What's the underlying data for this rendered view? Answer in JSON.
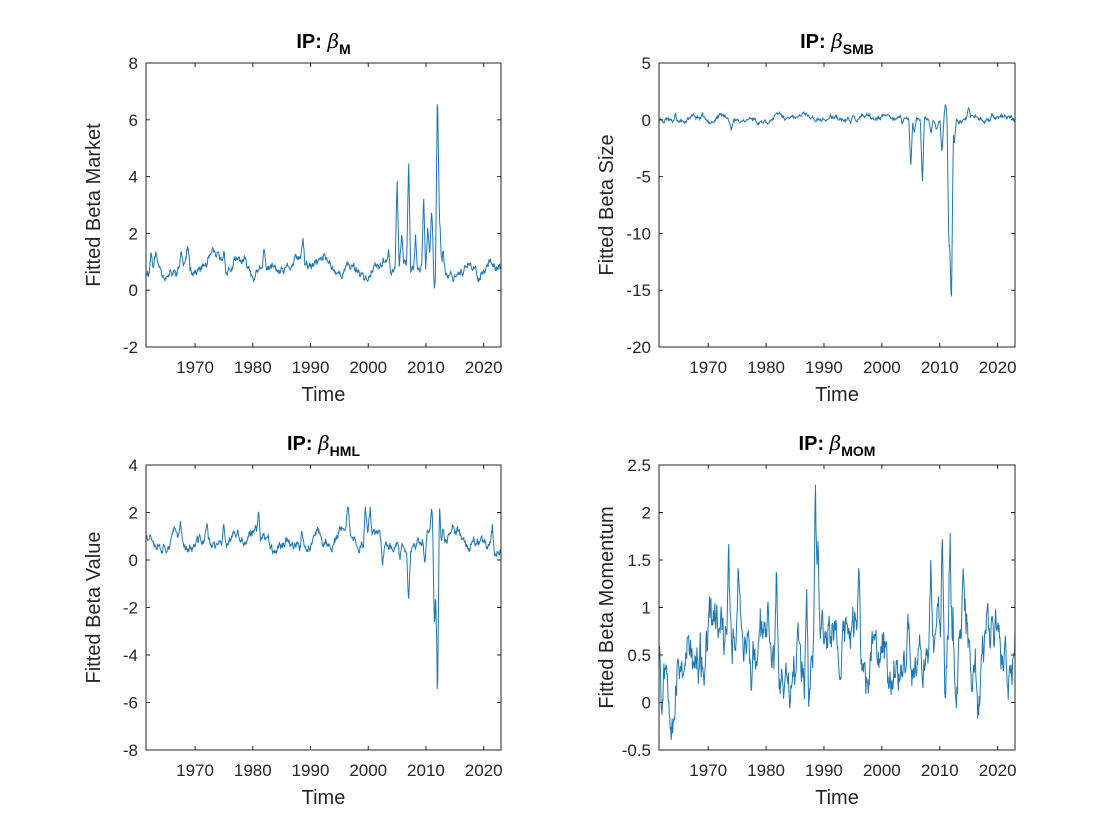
{
  "figure": {
    "line_color": "#1f77b4"
  },
  "chart_data": [
    {
      "type": "line",
      "title": "IP: β",
      "title_prefix": "IP: ",
      "title_symbol": "β",
      "title_subscript": "M",
      "xlabel": "Time",
      "ylabel": "Fitted Beta Market",
      "xlim": [
        1961.5,
        2023
      ],
      "ylim": [
        -2,
        8
      ],
      "xticks": [
        1970,
        1980,
        1990,
        2000,
        2010,
        2020
      ],
      "yticks": [
        -2,
        0,
        2,
        4,
        6,
        8
      ],
      "ytick_labels": [
        "-2",
        "0",
        "2",
        "4",
        "6",
        "8"
      ],
      "mean": 0.8,
      "amp": 0.28,
      "noise": 0.12,
      "lower_clip": -0.4,
      "seed": 11,
      "spikes": [
        [
          1962.4,
          0.7
        ],
        [
          1963.2,
          0.5
        ],
        [
          1967.6,
          0.6
        ],
        [
          1968.8,
          0.6
        ],
        [
          1975.0,
          0.5
        ],
        [
          1982.0,
          0.7
        ],
        [
          1988.7,
          0.9
        ],
        [
          2003.5,
          0.8
        ],
        [
          2005.0,
          3.2
        ],
        [
          2005.8,
          1.0
        ],
        [
          2007.0,
          3.8
        ],
        [
          2008.2,
          1.2
        ],
        [
          2009.6,
          2.7
        ],
        [
          2010.3,
          1.4
        ],
        [
          2011.0,
          1.8
        ],
        [
          2011.5,
          -1.1
        ],
        [
          2012.0,
          6.3
        ],
        [
          2012.4,
          1.6
        ],
        [
          2013.0,
          0.8
        ]
      ]
    },
    {
      "type": "line",
      "title": "IP: β",
      "title_prefix": "IP: ",
      "title_symbol": "β",
      "title_subscript": "SMB",
      "xlabel": "Time",
      "ylabel": "Fitted Beta Size",
      "xlim": [
        1961.5,
        2023
      ],
      "ylim": [
        -20,
        5
      ],
      "xticks": [
        1970,
        1980,
        1990,
        2000,
        2010,
        2020
      ],
      "yticks": [
        -20,
        -15,
        -10,
        -5,
        0,
        5
      ],
      "ytick_labels": [
        "-20",
        "-15",
        "-10",
        "-5",
        "0",
        "5"
      ],
      "mean": 0.1,
      "amp": 0.22,
      "noise": 0.14,
      "lower_clip": -20,
      "seed": 23,
      "spikes": [
        [
          1964.3,
          0.8
        ],
        [
          1969.0,
          0.5
        ],
        [
          1974.0,
          -0.6
        ],
        [
          1978.5,
          -0.5
        ],
        [
          1984.0,
          0.4
        ],
        [
          1995.0,
          0.3
        ],
        [
          2003.5,
          -0.6
        ],
        [
          2005.0,
          -4.4
        ],
        [
          2005.6,
          -1.5
        ],
        [
          2007.0,
          -6.0
        ],
        [
          2008.5,
          -1.2
        ],
        [
          2009.5,
          -0.8
        ],
        [
          2010.4,
          -3.0
        ],
        [
          2011.0,
          1.5
        ],
        [
          2011.6,
          -12.0
        ],
        [
          2012.0,
          -17.6
        ],
        [
          2012.5,
          -2.0
        ],
        [
          2015.0,
          0.5
        ],
        [
          2019.0,
          0.5
        ]
      ]
    },
    {
      "type": "line",
      "title": "IP: β",
      "title_prefix": "IP: ",
      "title_symbol": "β",
      "title_subscript": "HML",
      "xlabel": "Time",
      "ylabel": "Fitted Beta Value",
      "xlim": [
        1961.5,
        2023
      ],
      "ylim": [
        -8,
        4
      ],
      "xticks": [
        1970,
        1980,
        1990,
        2000,
        2010,
        2020
      ],
      "yticks": [
        -8,
        -6,
        -4,
        -2,
        0,
        2,
        4
      ],
      "ytick_labels": [
        "-8",
        "-6",
        "-4",
        "-2",
        "0",
        "2",
        "4"
      ],
      "mean": 0.8,
      "amp": 0.35,
      "noise": 0.16,
      "lower_clip": -8,
      "seed": 37,
      "spikes": [
        [
          1967.5,
          0.8
        ],
        [
          1972.0,
          0.7
        ],
        [
          1975.0,
          0.8
        ],
        [
          1981.0,
          1.0
        ],
        [
          1988.5,
          0.7
        ],
        [
          1996.5,
          0.9
        ],
        [
          1999.5,
          1.5
        ],
        [
          2000.3,
          1.3
        ],
        [
          2002.5,
          -0.8
        ],
        [
          2005.5,
          -0.9
        ],
        [
          2007.0,
          -2.0
        ],
        [
          2009.8,
          -1.3
        ],
        [
          2011.0,
          1.2
        ],
        [
          2011.5,
          -3.9
        ],
        [
          2012.0,
          -7.2
        ],
        [
          2012.3,
          1.8
        ],
        [
          2013.0,
          0.6
        ],
        [
          2021.5,
          0.9
        ]
      ]
    },
    {
      "type": "line",
      "title": "IP: β",
      "title_prefix": "IP: ",
      "title_symbol": "β",
      "title_subscript": "MOM",
      "xlabel": "Time",
      "ylabel": "Fitted Beta Momentum",
      "xlim": [
        1961.5,
        2023
      ],
      "ylim": [
        -0.5,
        2.5
      ],
      "xticks": [
        1970,
        1980,
        1990,
        2000,
        2010,
        2020
      ],
      "yticks": [
        -0.5,
        0,
        0.5,
        1,
        1.5,
        2,
        2.5
      ],
      "ytick_labels": [
        "-0.5",
        "0",
        "0.5",
        "1",
        "1.5",
        "2",
        "2.5"
      ],
      "mean": 0.55,
      "amp": 0.3,
      "noise": 0.18,
      "lower_clip": -0.45,
      "seed": 53,
      "spikes": [
        [
          1962.0,
          -0.7
        ],
        [
          1973.5,
          0.8
        ],
        [
          1975.2,
          0.9
        ],
        [
          1981.8,
          1.0
        ],
        [
          1987.0,
          0.9
        ],
        [
          1988.5,
          1.8
        ],
        [
          1989.0,
          1.1
        ],
        [
          1996.0,
          0.6
        ],
        [
          2004.5,
          0.6
        ],
        [
          2008.5,
          0.8
        ],
        [
          2010.5,
          0.9
        ],
        [
          2011.0,
          -0.7
        ],
        [
          2011.8,
          1.4
        ],
        [
          2012.3,
          0.8
        ],
        [
          2014.0,
          0.5
        ],
        [
          2019.0,
          0.4
        ],
        [
          2021.3,
          0.4
        ]
      ]
    }
  ]
}
